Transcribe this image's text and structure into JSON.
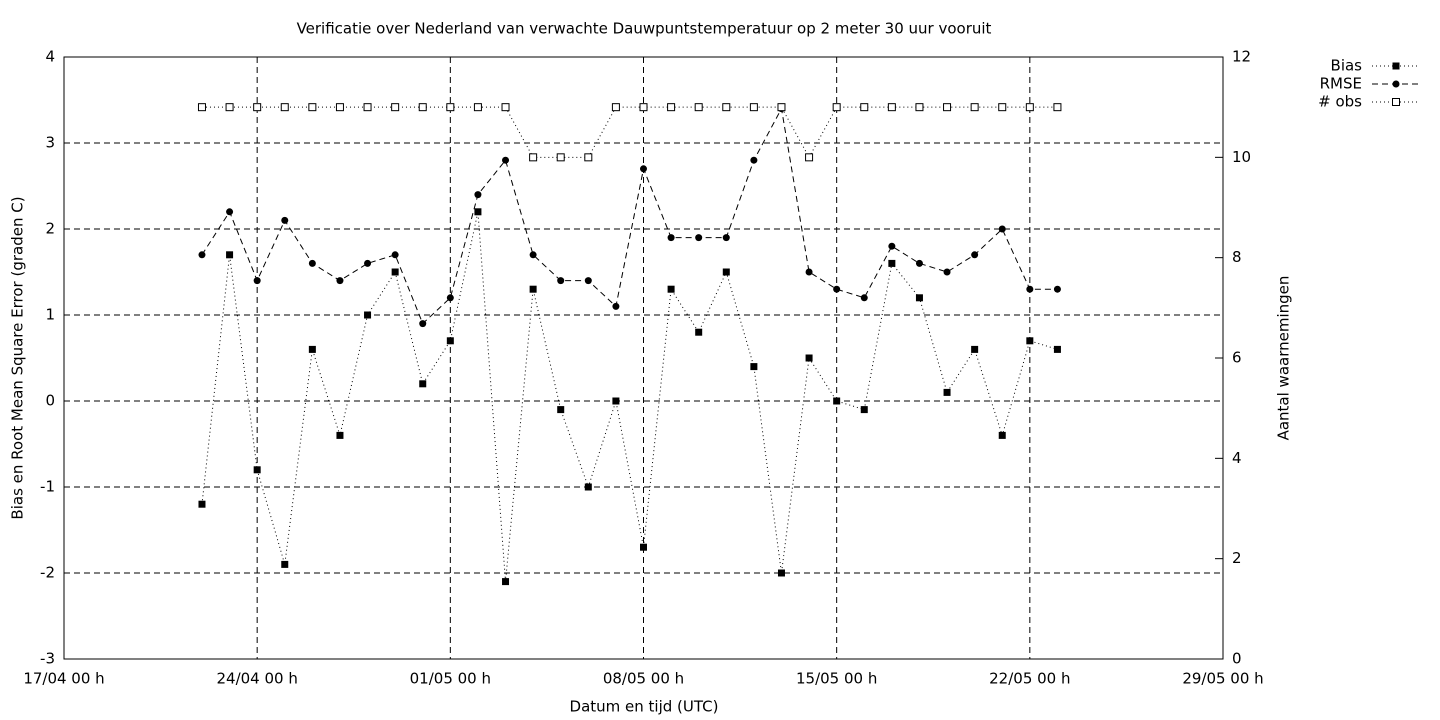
{
  "chart_data": {
    "type": "line",
    "title": "Verificatie over Nederland van verwachte Dauwpuntstemperatuur op 2 meter 30 uur vooruit",
    "x_label": "Datum en tijd (UTC)",
    "y_label": "Bias en Root Mean Square Error (graden C)",
    "y2_label": "Aantal waarnemingen",
    "x": [
      "22/04 00 h",
      "23/04 00 h",
      "24/04 00 h",
      "25/04 00 h",
      "26/04 00 h",
      "27/04 00 h",
      "28/04 00 h",
      "29/04 00 h",
      "30/04 00 h",
      "01/05 00 h",
      "02/05 00 h",
      "03/05 00 h",
      "04/05 00 h",
      "05/05 00 h",
      "06/05 00 h",
      "07/05 00 h",
      "08/05 00 h",
      "09/05 00 h",
      "10/05 00 h",
      "11/05 00 h",
      "12/05 00 h",
      "13/05 00 h",
      "14/05 00 h",
      "15/05 00 h",
      "16/05 00 h",
      "17/05 00 h",
      "18/05 00 h",
      "19/05 00 h",
      "20/05 00 h",
      "21/05 00 h",
      "22/05 00 h",
      "23/05 00 h"
    ],
    "series": [
      {
        "name": "Bias",
        "color": "#000000",
        "marker": "filled-square",
        "line": "dotted",
        "values": [
          -1.2,
          1.7,
          -0.8,
          -1.9,
          0.6,
          -0.4,
          1.0,
          1.5,
          0.2,
          0.7,
          2.2,
          -2.1,
          1.3,
          -0.1,
          -1.0,
          0,
          -1.7,
          1.3,
          0.8,
          1.5,
          0.4,
          -2.0,
          0.5,
          0,
          -0.1,
          1.6,
          1.2,
          0.1,
          0.6,
          -0.4,
          0.7,
          0.6
        ]
      },
      {
        "name": "RMSE",
        "color": "#000000",
        "marker": "filled-circle",
        "line": "dashed",
        "values": [
          1.7,
          2.2,
          1.4,
          2.1,
          1.6,
          1.4,
          1.6,
          1.7,
          0.9,
          1.2,
          2.4,
          2.8,
          1.7,
          1.4,
          1.4,
          1.1,
          2.7,
          1.9,
          1.9,
          1.9,
          2.8,
          3.4,
          1.5,
          1.3,
          1.2,
          1.8,
          1.6,
          1.5,
          1.7,
          2.0,
          1.3,
          1.3
        ]
      },
      {
        "name": "# obs",
        "color": "#000000",
        "marker": "open-square",
        "line": "dotted",
        "axis": "y2",
        "values": [
          11,
          11,
          11,
          11,
          11,
          11,
          11,
          11,
          11,
          11,
          11,
          11,
          10,
          10,
          10,
          11,
          11,
          11,
          11,
          11,
          11,
          11,
          10,
          11,
          11,
          11,
          11,
          11,
          11,
          11,
          11,
          11
        ]
      }
    ],
    "xlim": [
      "17/04 00 h",
      "29/05 00 h"
    ],
    "xticks": [
      "17/04 00 h",
      "24/04 00 h",
      "01/05 00 h",
      "08/05 00 h",
      "15/05 00 h",
      "22/05 00 h",
      "29/05 00 h"
    ],
    "ylim": [
      -3,
      4
    ],
    "yticks": [
      -3,
      -2,
      -1,
      0,
      1,
      2,
      3,
      4
    ],
    "y2lim": [
      0,
      12
    ],
    "y2ticks": [
      0,
      2,
      4,
      6,
      8,
      10,
      12
    ],
    "grid": true,
    "legend": "outside-top-right"
  }
}
